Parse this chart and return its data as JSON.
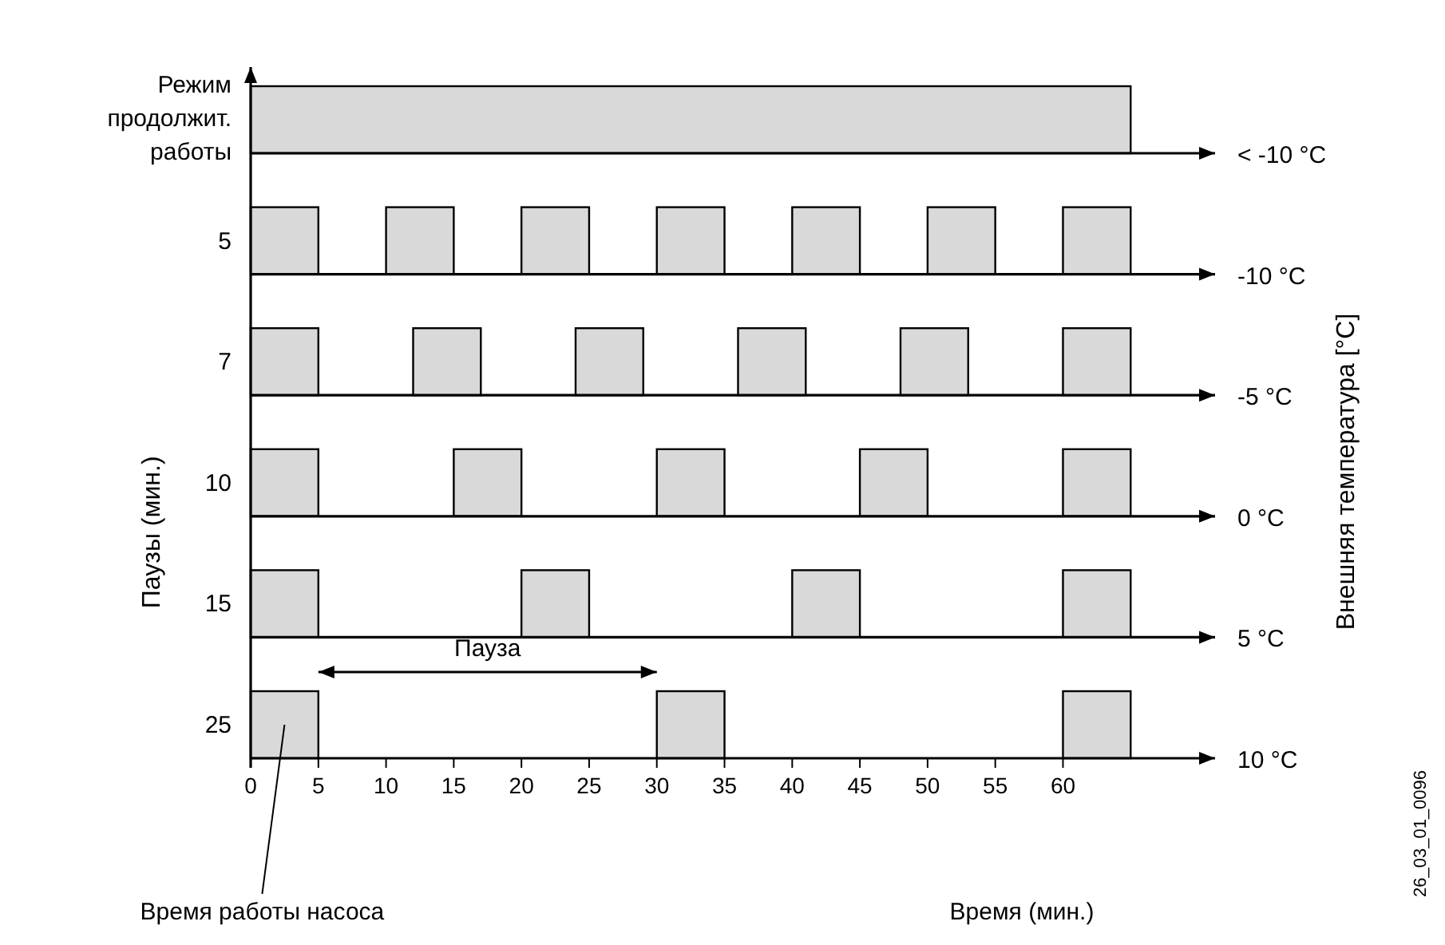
{
  "chart_data": {
    "type": "bar",
    "orientation": "horizontal",
    "categories": [
      "Режим продолжит. работы",
      "5",
      "7",
      "10",
      "15",
      "25"
    ],
    "series": [
      {
        "color": "#d9d9d9",
        "base": [
          0,
          0,
          0,
          0,
          0,
          0
        ],
        "values": [
          65,
          5,
          5,
          5,
          5,
          5
        ]
      },
      {
        "color": "#d9d9d9",
        "base": [
          null,
          10,
          12,
          15,
          20,
          30
        ],
        "values": [
          null,
          5,
          5,
          5,
          5,
          5
        ]
      },
      {
        "color": "#d9d9d9",
        "base": [
          null,
          20,
          24,
          30,
          40,
          60
        ],
        "values": [
          null,
          5,
          5,
          5,
          5,
          5
        ]
      },
      {
        "color": "#d9d9d9",
        "base": [
          null,
          30,
          36,
          45,
          60,
          null
        ],
        "values": [
          null,
          5,
          5,
          5,
          5,
          null
        ]
      },
      {
        "color": "#d9d9d9",
        "base": [
          null,
          40,
          48,
          60,
          null,
          null
        ],
        "values": [
          null,
          5,
          5,
          5,
          null,
          null
        ]
      },
      {
        "color": "#d9d9d9",
        "base": [
          null,
          50,
          60,
          null,
          null,
          null
        ],
        "values": [
          null,
          5,
          5,
          null,
          null,
          null
        ]
      },
      {
        "color": "#d9d9d9",
        "base": [
          null,
          60,
          null,
          null,
          null,
          null
        ],
        "values": [
          null,
          5,
          null,
          null,
          null,
          null
        ]
      }
    ],
    "xlim": [
      0,
      71
    ],
    "xticks": [
      0,
      5,
      10,
      15,
      20,
      25,
      30,
      35,
      40,
      45,
      50,
      55,
      60
    ],
    "xlabel": "Время (мин.)",
    "ylabel": "Паузы (мин.)",
    "y2label": "Внешняя температура [°C]",
    "annotations": [
      "< -10 °C",
      "-10 °C",
      "-5 °C",
      "0 °C",
      "5 °C",
      "10 °C",
      "Пауза",
      "Время работы насоса",
      "26_03_01_0096"
    ]
  }
}
